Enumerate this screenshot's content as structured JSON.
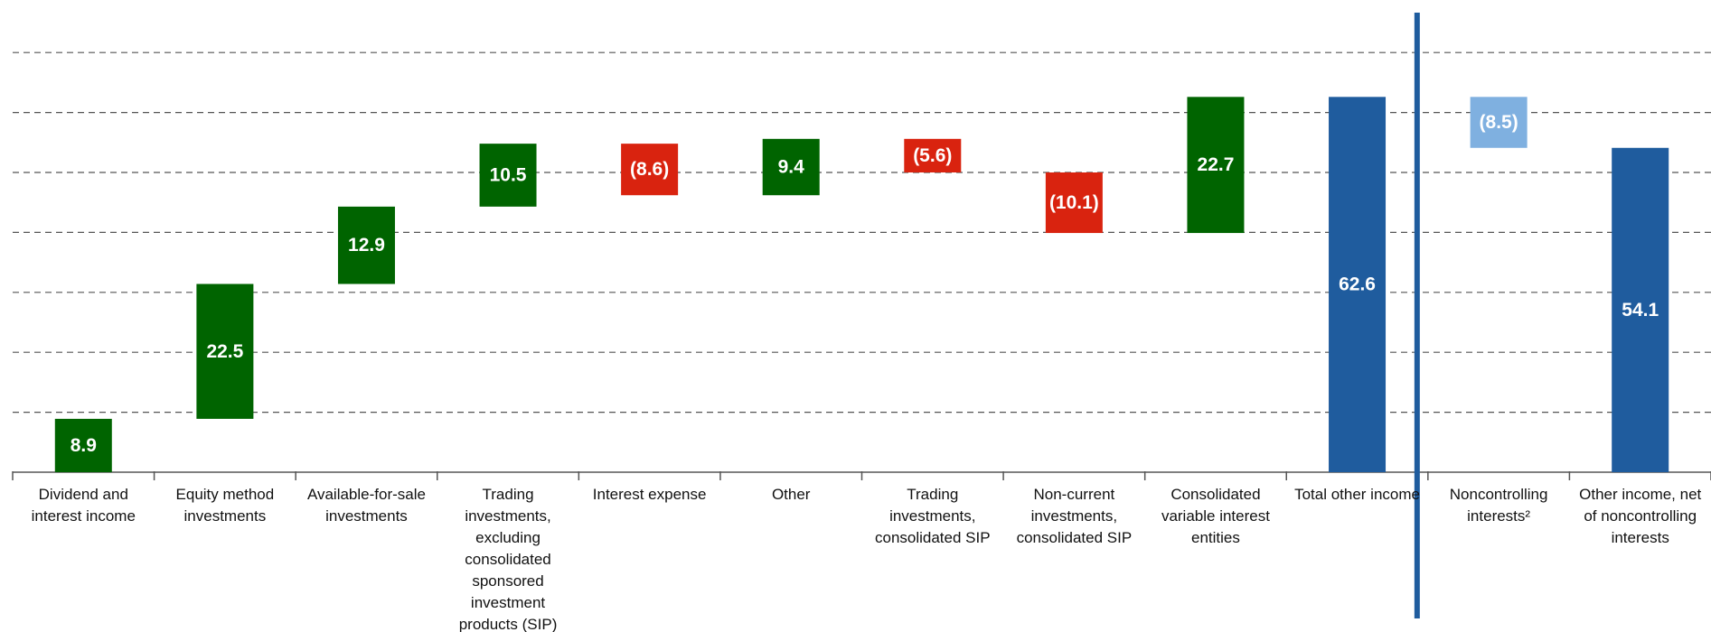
{
  "chart_data": {
    "type": "waterfall",
    "categories": [
      "Dividend and interest income",
      "Equity method investments",
      "Available-for-sale investments",
      "Trading investments, excluding consolidated sponsored investment products (SIP)",
      "Interest expense",
      "Other",
      "Trading investments, consolidated SIP",
      "Non-current investments, consolidated SIP",
      "Consolidated variable interest entities",
      "Total other income",
      "Noncontrolling interests²",
      "Other income, net of noncontrolling interests"
    ],
    "values": [
      8.9,
      22.5,
      12.9,
      10.5,
      -8.6,
      9.4,
      -5.6,
      -10.1,
      22.7,
      62.6,
      -8.5,
      54.1
    ],
    "value_labels": [
      "8.9",
      "22.5",
      "12.9",
      "10.5",
      "(8.6)",
      "9.4",
      "(5.6)",
      "(10.1)",
      "22.7",
      "62.6",
      "(8.5)",
      "54.1"
    ],
    "measures": [
      "relative",
      "relative",
      "relative",
      "relative",
      "relative",
      "relative",
      "relative",
      "relative",
      "relative",
      "total",
      "relative",
      "total"
    ],
    "colors": [
      "#006400",
      "#006400",
      "#006400",
      "#006400",
      "#d9230f",
      "#006400",
      "#d9230f",
      "#d9230f",
      "#006400",
      "#1f5c9e",
      "#7fb0e0",
      "#1f5c9e"
    ],
    "ylim": [
      0,
      77
    ],
    "yticks": [
      0,
      10,
      20,
      30,
      40,
      50,
      60,
      70
    ],
    "grid": true
  }
}
